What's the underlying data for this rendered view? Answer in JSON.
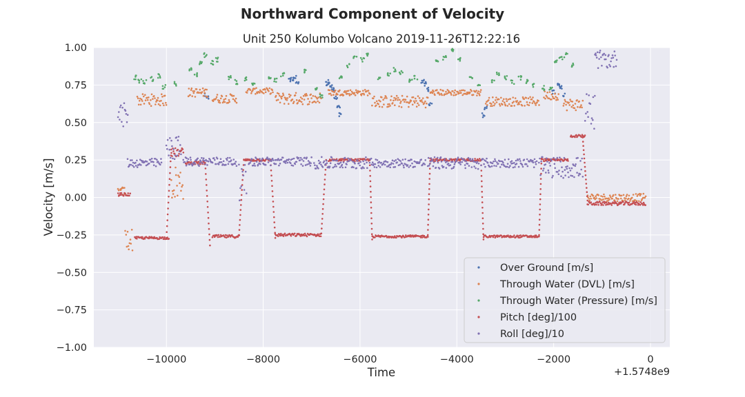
{
  "chart_data": {
    "type": "scatter",
    "suptitle": "Northward Component of Velocity",
    "title": "Unit 250 Kolumbo Volcano 2019-11-26T12:22:16",
    "xlabel": "Time",
    "ylabel": "Velocity [m/s]",
    "x_offset_label": "+1.5748e9",
    "xlim": [
      -11500,
      400
    ],
    "ylim": [
      -1.0,
      1.0
    ],
    "xticks": [
      -10000,
      -8000,
      -6000,
      -4000,
      -2000,
      0
    ],
    "xtick_labels": [
      "−10000",
      "−8000",
      "−6000",
      "−4000",
      "−2000",
      "0"
    ],
    "yticks": [
      -1.0,
      -0.75,
      -0.5,
      -0.25,
      0.0,
      0.25,
      0.5,
      0.75,
      1.0
    ],
    "ytick_labels": [
      "−1.00",
      "−0.75",
      "−0.50",
      "−0.25",
      "0.00",
      "0.25",
      "0.50",
      "0.75",
      "1.00"
    ],
    "grid": true,
    "legend_position": "lower-right",
    "series": [
      {
        "name": "Over Ground [m/s]",
        "color": "#4c72b0",
        "points": [
          [
            -7450,
            0.78
          ],
          [
            -7400,
            0.79
          ],
          [
            -7350,
            0.8
          ],
          [
            -7300,
            0.77
          ],
          [
            -6700,
            0.76
          ],
          [
            -6650,
            0.77
          ],
          [
            -6600,
            0.75
          ],
          [
            -6550,
            0.72
          ],
          [
            -6500,
            0.66
          ],
          [
            -6450,
            0.6
          ],
          [
            -6400,
            0.55
          ],
          [
            -4700,
            0.77
          ],
          [
            -4650,
            0.76
          ],
          [
            -4600,
            0.72
          ],
          [
            -4550,
            0.62
          ],
          [
            -3450,
            0.55
          ],
          [
            -3400,
            0.6
          ],
          [
            -2000,
            0.7
          ],
          [
            -1900,
            0.75
          ],
          [
            -1850,
            0.74
          ],
          [
            -1800,
            0.68
          ],
          [
            -9200,
            0.68
          ],
          [
            -9150,
            0.66
          ]
        ]
      },
      {
        "name": "Through Water (DVL) [m/s]",
        "color": "#dd8452",
        "segments": [
          {
            "x0": -11000,
            "x1": -10850,
            "y": 0.04,
            "jitter": 0.03
          },
          {
            "x0": -10850,
            "x1": -10700,
            "y": -0.28,
            "jitter": 0.08
          },
          {
            "x0": -10600,
            "x1": -10000,
            "y": 0.65,
            "jitter": 0.04
          },
          {
            "x0": -9900,
            "x1": -9650,
            "y": 0.1,
            "jitter": 0.12
          },
          {
            "x0": -9550,
            "x1": -9150,
            "y": 0.7,
            "jitter": 0.03
          },
          {
            "x0": -9050,
            "x1": -8550,
            "y": 0.66,
            "jitter": 0.03
          },
          {
            "x0": -8350,
            "x1": -7800,
            "y": 0.71,
            "jitter": 0.02
          },
          {
            "x0": -7750,
            "x1": -6800,
            "y": 0.66,
            "jitter": 0.04
          },
          {
            "x0": -6650,
            "x1": -5800,
            "y": 0.7,
            "jitter": 0.02
          },
          {
            "x0": -5750,
            "x1": -4600,
            "y": 0.64,
            "jitter": 0.04
          },
          {
            "x0": -4550,
            "x1": -3500,
            "y": 0.7,
            "jitter": 0.02
          },
          {
            "x0": -3400,
            "x1": -2300,
            "y": 0.64,
            "jitter": 0.03
          },
          {
            "x0": -2200,
            "x1": -1900,
            "y": 0.68,
            "jitter": 0.03
          },
          {
            "x0": -1800,
            "x1": -1400,
            "y": 0.62,
            "jitter": 0.04
          },
          {
            "x0": -1300,
            "x1": -100,
            "y": 0.0,
            "jitter": 0.025
          }
        ]
      },
      {
        "name": "Through Water (Pressure) [m/s]",
        "color": "#55a868",
        "points": [
          [
            -10650,
            0.8
          ],
          [
            -10550,
            0.78
          ],
          [
            -10450,
            0.77
          ],
          [
            -10300,
            0.79
          ],
          [
            -10150,
            0.81
          ],
          [
            -10050,
            0.74
          ],
          [
            -9800,
            0.76
          ],
          [
            -9500,
            0.85
          ],
          [
            -9400,
            0.82
          ],
          [
            -9300,
            0.9
          ],
          [
            -9200,
            0.95
          ],
          [
            -9050,
            0.9
          ],
          [
            -8950,
            0.92
          ],
          [
            -8700,
            0.8
          ],
          [
            -8550,
            0.77
          ],
          [
            -8350,
            0.79
          ],
          [
            -8200,
            0.76
          ],
          [
            -7850,
            0.8
          ],
          [
            -7750,
            0.78
          ],
          [
            -7600,
            0.82
          ],
          [
            -7150,
            0.84
          ],
          [
            -6900,
            0.72
          ],
          [
            -6800,
            0.68
          ],
          [
            -6400,
            0.8
          ],
          [
            -6250,
            0.88
          ],
          [
            -6100,
            0.93
          ],
          [
            -5950,
            0.92
          ],
          [
            -5850,
            0.96
          ],
          [
            -5600,
            0.8
          ],
          [
            -5400,
            0.82
          ],
          [
            -5300,
            0.85
          ],
          [
            -5150,
            0.83
          ],
          [
            -4950,
            0.78
          ],
          [
            -4850,
            0.8
          ],
          [
            -4400,
            0.91
          ],
          [
            -4250,
            0.93
          ],
          [
            -4100,
            0.98
          ],
          [
            -3950,
            0.92
          ],
          [
            -3700,
            0.8
          ],
          [
            -3550,
            0.76
          ],
          [
            -3250,
            0.78
          ],
          [
            -3150,
            0.83
          ],
          [
            -3000,
            0.8
          ],
          [
            -2850,
            0.77
          ],
          [
            -2700,
            0.8
          ],
          [
            -2550,
            0.77
          ],
          [
            -2400,
            0.75
          ],
          [
            -2200,
            0.73
          ],
          [
            -2050,
            0.72
          ],
          [
            -1950,
            0.9
          ],
          [
            -1850,
            0.93
          ],
          [
            -1750,
            0.95
          ],
          [
            -1600,
            0.88
          ]
        ]
      },
      {
        "name": "Pitch [deg]/100",
        "color": "#c44e52",
        "segments": [
          {
            "x0": -11000,
            "x1": -10750,
            "y": 0.02,
            "jitter": 0.01
          },
          {
            "x0": -10650,
            "x1": -9950,
            "y": -0.27,
            "jitter": 0.008
          },
          {
            "x0": -9900,
            "x1": -9650,
            "y": 0.3,
            "jitter": 0.03
          },
          {
            "x0": -9600,
            "x1": -9200,
            "y": 0.23,
            "jitter": 0.01
          },
          {
            "x0": -9050,
            "x1": -8500,
            "y": -0.26,
            "jitter": 0.01
          },
          {
            "x0": -8400,
            "x1": -7850,
            "y": 0.25,
            "jitter": 0.008
          },
          {
            "x0": -7750,
            "x1": -6800,
            "y": -0.25,
            "jitter": 0.01
          },
          {
            "x0": -6650,
            "x1": -5800,
            "y": 0.25,
            "jitter": 0.008
          },
          {
            "x0": -5750,
            "x1": -4600,
            "y": -0.26,
            "jitter": 0.008
          },
          {
            "x0": -4550,
            "x1": -3500,
            "y": 0.25,
            "jitter": 0.008
          },
          {
            "x0": -3450,
            "x1": -2300,
            "y": -0.26,
            "jitter": 0.008
          },
          {
            "x0": -2250,
            "x1": -1700,
            "y": 0.25,
            "jitter": 0.008
          },
          {
            "x0": -1650,
            "x1": -1350,
            "y": 0.41,
            "jitter": 0.008
          },
          {
            "x0": -1300,
            "x1": -100,
            "y": -0.04,
            "jitter": 0.012
          }
        ],
        "transitions": [
          [
            -10000,
            -0.27,
            -9900,
            0.32
          ],
          [
            -9200,
            0.23,
            -9100,
            -0.32
          ],
          [
            -8500,
            -0.25,
            -8400,
            0.25
          ],
          [
            -7850,
            0.25,
            -7750,
            -0.27
          ],
          [
            -6800,
            -0.24,
            -6700,
            0.25
          ],
          [
            -5800,
            0.25,
            -5750,
            -0.28
          ],
          [
            -4600,
            -0.25,
            -4550,
            0.26
          ],
          [
            -3500,
            0.25,
            -3450,
            -0.28
          ],
          [
            -2300,
            -0.25,
            -2250,
            0.26
          ],
          [
            -1400,
            0.4,
            -1300,
            -0.02
          ]
        ]
      },
      {
        "name": "Roll [deg]/10",
        "color": "#8172b3",
        "segments": [
          {
            "x0": -11000,
            "x1": -10800,
            "y": 0.55,
            "jitter": 0.08
          },
          {
            "x0": -10800,
            "x1": -10100,
            "y": 0.23,
            "jitter": 0.03
          },
          {
            "x0": -10000,
            "x1": -9700,
            "y": 0.33,
            "jitter": 0.08
          },
          {
            "x0": -9650,
            "x1": -8550,
            "y": 0.24,
            "jitter": 0.03
          },
          {
            "x0": -8500,
            "x1": -8350,
            "y": 0.1,
            "jitter": 0.12
          },
          {
            "x0": -8300,
            "x1": -7000,
            "y": 0.24,
            "jitter": 0.03
          },
          {
            "x0": -6950,
            "x1": -5850,
            "y": 0.23,
            "jitter": 0.04
          },
          {
            "x0": -5800,
            "x1": -4650,
            "y": 0.23,
            "jitter": 0.03
          },
          {
            "x0": -4600,
            "x1": -3550,
            "y": 0.23,
            "jitter": 0.04
          },
          {
            "x0": -3500,
            "x1": -2350,
            "y": 0.23,
            "jitter": 0.03
          },
          {
            "x0": -2300,
            "x1": -1400,
            "y": 0.2,
            "jitter": 0.07
          },
          {
            "x0": -1350,
            "x1": -1150,
            "y": 0.55,
            "jitter": 0.15
          },
          {
            "x0": -1150,
            "x1": -700,
            "y": 0.92,
            "jitter": 0.06
          }
        ]
      }
    ]
  }
}
